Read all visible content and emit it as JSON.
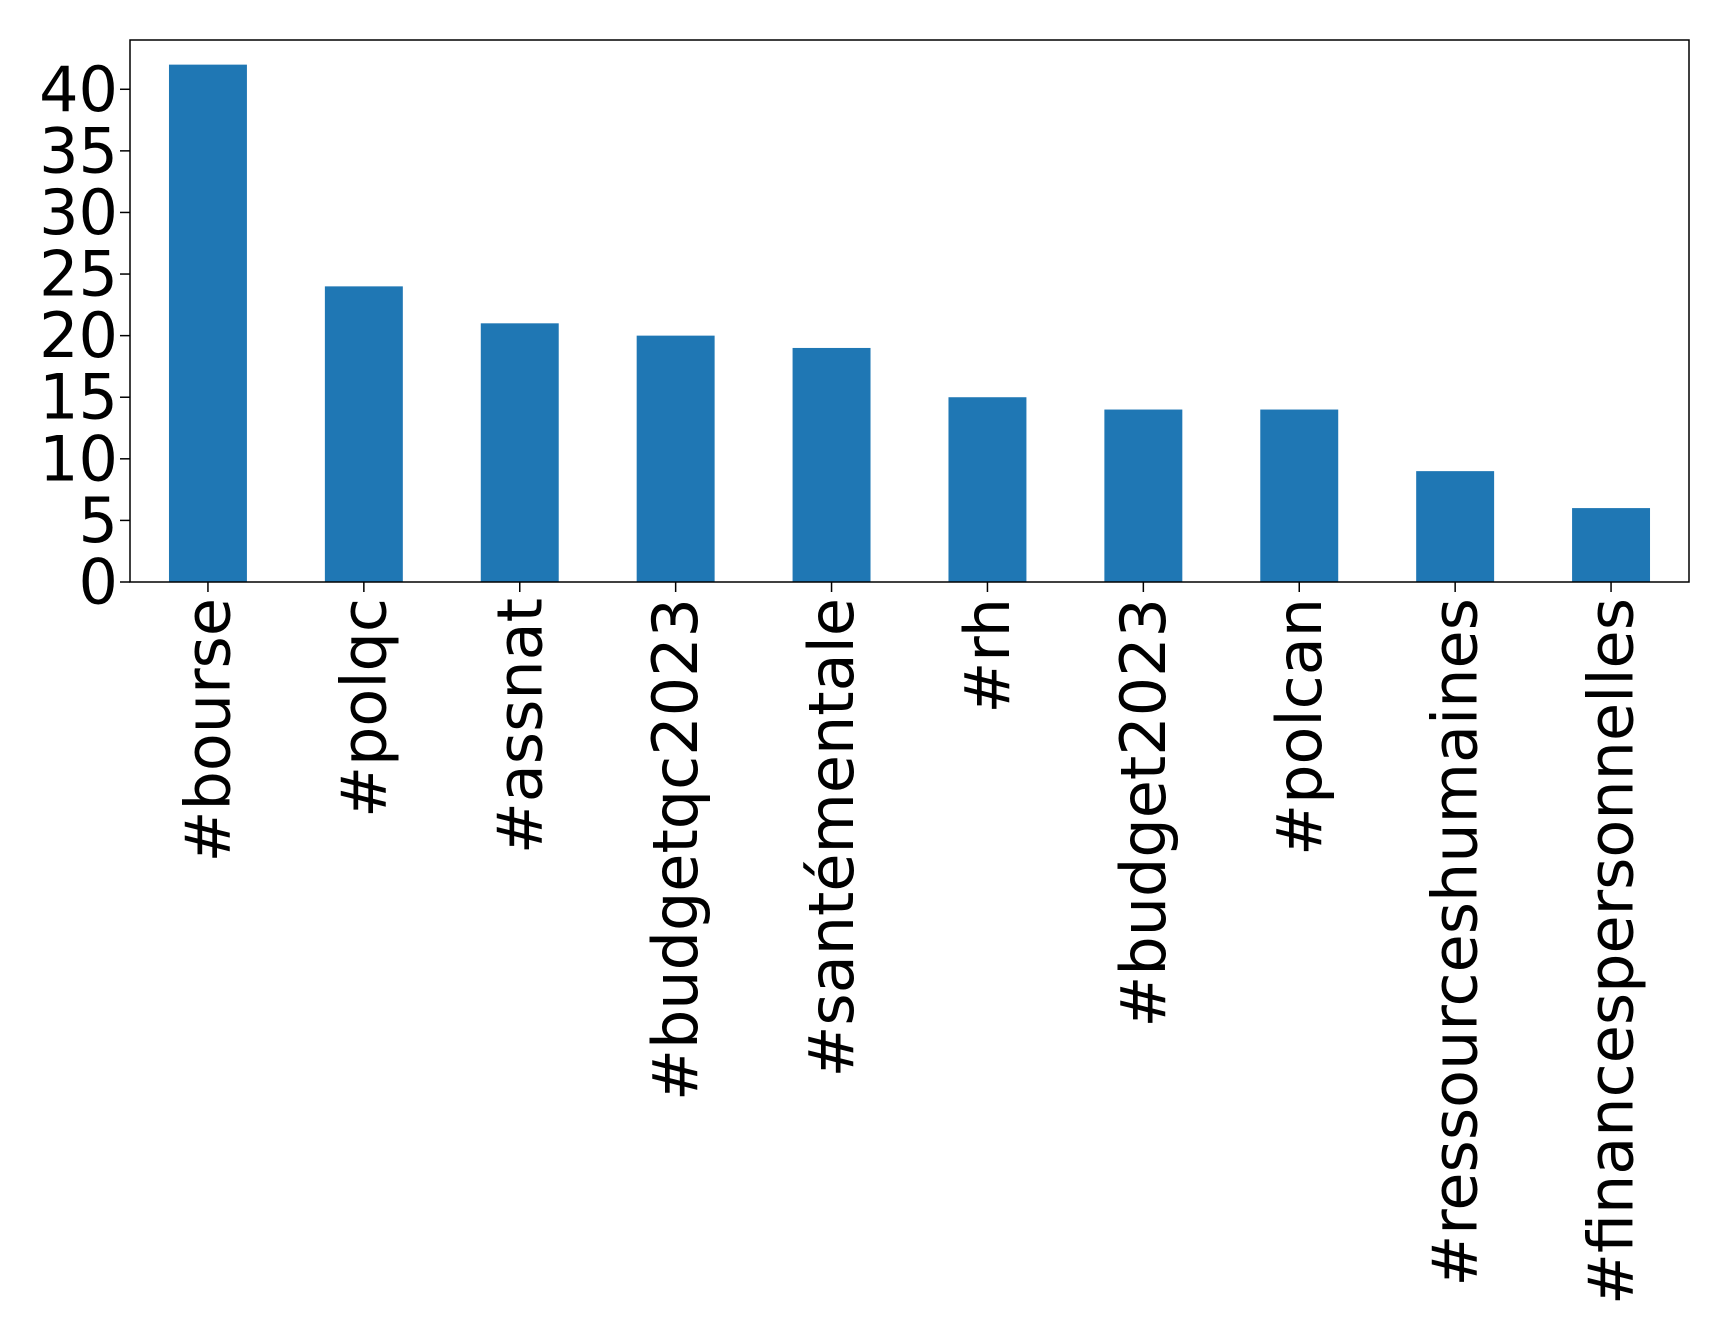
{
  "chart_data": {
    "type": "bar",
    "title": "",
    "xlabel": "",
    "ylabel": "",
    "categories": [
      "#bourse",
      "#polqc",
      "#assnat",
      "#budgetqc2023",
      "#santémentale",
      "#rh",
      "#budget2023",
      "#polcan",
      "#ressourceshumaines",
      "#financespersonnelles"
    ],
    "values": [
      42,
      24,
      21,
      20,
      19,
      15,
      14,
      14,
      9,
      6
    ],
    "ylim": [
      0,
      44
    ],
    "yticks": [
      "0",
      "5",
      "10",
      "15",
      "20",
      "25",
      "30",
      "35",
      "40"
    ],
    "grid": false,
    "legend": "none",
    "bar_color": "#1f77b4"
  }
}
